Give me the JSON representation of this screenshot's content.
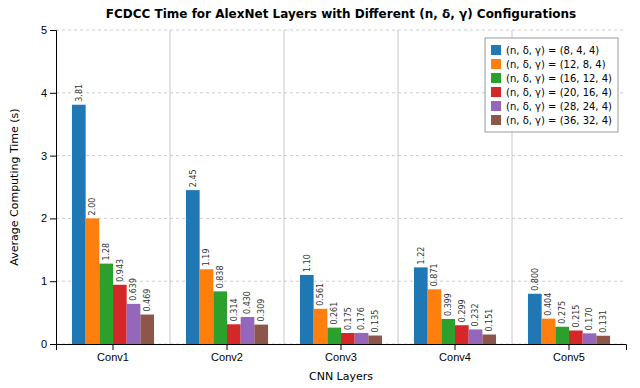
{
  "chart_data": {
    "type": "bar",
    "title": "FCDCC Time for AlexNet Layers with Different (n, δ, γ) Configurations",
    "x_label": "CNN Layers",
    "y_label": "Average Computing Time (s)",
    "categories": [
      "Conv1",
      "Conv2",
      "Conv3",
      "Conv4",
      "Conv5"
    ],
    "series": [
      {
        "name": "(n, δ, γ) = (8, 4, 4)",
        "color": "#1f77b4",
        "values": [
          3.81,
          2.45,
          1.1,
          1.22,
          0.8
        ],
        "value_labels": [
          "3.81",
          "2.45",
          "1.10",
          "1.22",
          "0.800"
        ]
      },
      {
        "name": "(n, δ, γ) = (12, 8, 4)",
        "color": "#ff7f0e",
        "values": [
          2.0,
          1.19,
          0.561,
          0.871,
          0.404
        ],
        "value_labels": [
          "2.00",
          "1.19",
          "0.561",
          "0.871",
          "0.404"
        ]
      },
      {
        "name": "(n, δ, γ) = (16, 12, 4)",
        "color": "#2ca02c",
        "values": [
          1.28,
          0.838,
          0.261,
          0.399,
          0.275
        ],
        "value_labels": [
          "1.28",
          "0.838",
          "0.261",
          "0.399",
          "0.275"
        ]
      },
      {
        "name": "(n, δ, γ) = (20, 16, 4)",
        "color": "#d62728",
        "values": [
          0.943,
          0.314,
          0.175,
          0.299,
          0.215
        ],
        "value_labels": [
          "0.943",
          "0.314",
          "0.175",
          "0.299",
          "0.215"
        ]
      },
      {
        "name": "(n, δ, γ) = (28, 24, 4)",
        "color": "#9467bd",
        "values": [
          0.639,
          0.43,
          0.176,
          0.232,
          0.17
        ],
        "value_labels": [
          "0.639",
          "0.430",
          "0.176",
          "0.232",
          "0.170"
        ]
      },
      {
        "name": "(n, δ, γ) = (36, 32, 4)",
        "color": "#8c564b",
        "values": [
          0.469,
          0.309,
          0.135,
          0.151,
          0.131
        ],
        "value_labels": [
          "0.469",
          "0.309",
          "0.135",
          "0.151",
          "0.131"
        ]
      }
    ],
    "ylim": [
      0,
      5
    ],
    "yticks": [
      0,
      1,
      2,
      3,
      4,
      5
    ],
    "grid": true,
    "legend": "upper right",
    "data_labels": true
  }
}
